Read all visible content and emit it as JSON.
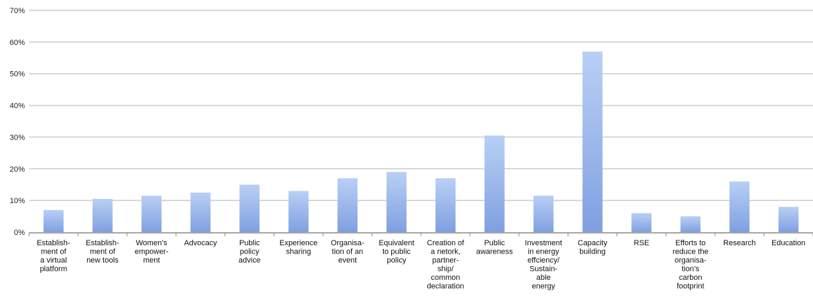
{
  "chart_data": {
    "type": "bar",
    "title": "",
    "xlabel": "",
    "ylabel": "",
    "ylim": [
      0,
      70
    ],
    "yticks": [
      "0%",
      "10%",
      "20%",
      "30%",
      "40%",
      "50%",
      "60%",
      "70%"
    ],
    "grid": true,
    "legend": "none",
    "categories": [
      [
        "Establish-",
        "ment of",
        "a virtual",
        "platform"
      ],
      [
        "Establish-",
        "ment of",
        "new tools"
      ],
      [
        "Women’s",
        "empower-",
        "ment"
      ],
      [
        "Advocacy"
      ],
      [
        "Public",
        "policy",
        "advice"
      ],
      [
        "Experience",
        "sharing"
      ],
      [
        "Organisa-",
        "tion of an",
        "event"
      ],
      [
        "Equivalent",
        "to public",
        "policy"
      ],
      [
        "Creation of",
        "a netork,",
        "partner-",
        "ship/",
        "common",
        "declaration"
      ],
      [
        "Public",
        "awareness"
      ],
      [
        "Investment",
        "in energy",
        "effciency/",
        "Sustain-",
        "able",
        "energy"
      ],
      [
        "Capacity",
        "building"
      ],
      [
        "RSE"
      ],
      [
        "Efforts to",
        "reduce the",
        "organisa-",
        "tion’s",
        "carbon",
        "footprint"
      ],
      [
        "Research"
      ],
      [
        "Education"
      ]
    ],
    "values": [
      7,
      10.5,
      11.5,
      12.5,
      15,
      13,
      17,
      19,
      17,
      30.5,
      11.5,
      57,
      6,
      5,
      16,
      8
    ],
    "colors": {
      "bar_top": "#b9d0f5",
      "bar_bottom": "#7f9fe0",
      "grid": "#cccccc",
      "axis": "#888888"
    }
  }
}
